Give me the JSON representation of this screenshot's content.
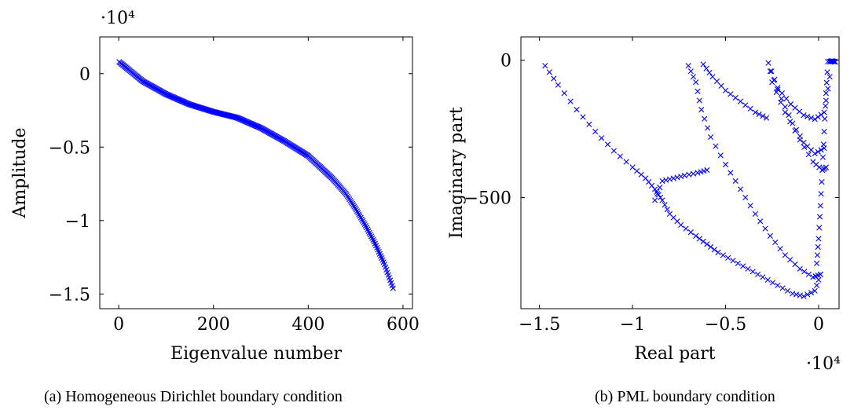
{
  "captions": {
    "left": "(a) Homogeneous Dirichlet boundary condition",
    "right": "(b) PML boundary condition"
  },
  "chart_data": [
    {
      "type": "scatter",
      "title": "",
      "xlabel": "Eigenvalue number",
      "ylabel": "Amplitude",
      "y_scale_label": "·10⁴",
      "xlim": [
        -40,
        620
      ],
      "ylim": [
        -1.6,
        0.25
      ],
      "x_ticks": [
        0,
        200,
        400,
        600
      ],
      "x_tick_labels": [
        "0",
        "200",
        "400",
        "600"
      ],
      "y_ticks": [
        0,
        -0.5,
        -1,
        -1.5
      ],
      "y_tick_labels": [
        "0",
        "−0.5",
        "−1",
        "−1.5"
      ],
      "grid": false,
      "legend": "none",
      "marker": "x",
      "color": "#0000ff",
      "n_points": 580,
      "curve_control_points": {
        "x": [
          1,
          50,
          100,
          150,
          200,
          250,
          300,
          350,
          400,
          450,
          480,
          500,
          520,
          540,
          560,
          580
        ],
        "y": [
          0.08,
          -0.05,
          -0.14,
          -0.21,
          -0.26,
          -0.3,
          -0.37,
          -0.46,
          -0.56,
          -0.71,
          -0.82,
          -0.92,
          -1.03,
          -1.15,
          -1.29,
          -1.47
        ]
      }
    },
    {
      "type": "scatter",
      "title": "",
      "xlabel": "Real part",
      "ylabel": "Imaginary part",
      "x_scale_label": "·10⁴",
      "xlim": [
        -1.6,
        0.11
      ],
      "ylim": [
        -905,
        85
      ],
      "x_ticks": [
        -1.5,
        -1,
        -0.5,
        0
      ],
      "x_tick_labels": [
        "−1.5",
        "−1",
        "−0.5",
        "0"
      ],
      "y_ticks": [
        0,
        -500
      ],
      "y_tick_labels": [
        "0",
        "−500"
      ],
      "grid": false,
      "legend": "none",
      "marker": "x",
      "color": "#0000ff",
      "branches": [
        {
          "x": [
            -1.47,
            -1.4,
            -1.3,
            -1.2,
            -1.1,
            -1.0,
            -0.93,
            -0.88,
            -0.85
          ],
          "y": [
            -20,
            -90,
            -180,
            -260,
            -330,
            -390,
            -430,
            -470,
            -500
          ]
        },
        {
          "x": [
            -0.88,
            -0.84,
            -0.78,
            -0.72,
            -0.65,
            -0.6
          ],
          "y": [
            -510,
            -440,
            -430,
            -420,
            -410,
            -400
          ]
        },
        {
          "x": [
            -0.84,
            -0.8,
            -0.74,
            -0.66,
            -0.6,
            -0.54,
            -0.46,
            -0.38,
            -0.3,
            -0.22,
            -0.14,
            -0.08,
            -0.02,
            0.01
          ],
          "y": [
            -510,
            -560,
            -600,
            -640,
            -670,
            -700,
            -730,
            -760,
            -790,
            -820,
            -850,
            -860,
            -840,
            -780
          ]
        },
        {
          "x": [
            -0.7,
            -0.66,
            -0.63,
            -0.58,
            -0.5,
            -0.42,
            -0.34,
            -0.26,
            -0.18,
            -0.1,
            -0.03,
            0.01
          ],
          "y": [
            -20,
            -80,
            -180,
            -280,
            -380,
            -470,
            -560,
            -640,
            -710,
            -760,
            -790,
            -780
          ]
        },
        {
          "x": [
            -0.62,
            -0.57,
            -0.5,
            -0.42,
            -0.34,
            -0.28
          ],
          "y": [
            -15,
            -60,
            -110,
            -150,
            -190,
            -210
          ]
        },
        {
          "x": [
            -0.27,
            -0.22,
            -0.15,
            -0.08,
            -0.02,
            0.03,
            0.06
          ],
          "y": [
            -10,
            -100,
            -160,
            -200,
            -215,
            -190,
            -60
          ]
        },
        {
          "x": [
            -0.26,
            -0.2,
            -0.14,
            -0.08,
            -0.02,
            0.03
          ],
          "y": [
            -40,
            -140,
            -230,
            -300,
            -340,
            -320
          ]
        },
        {
          "x": [
            -0.25,
            -0.18,
            -0.1,
            -0.03,
            0.02,
            0.04
          ],
          "y": [
            -80,
            -190,
            -290,
            -370,
            -400,
            -390
          ]
        },
        {
          "x": [
            0.05,
            0.04,
            0.03,
            0.02,
            0.01,
            0.0,
            -0.01
          ],
          "y": [
            -5,
            -120,
            -260,
            -400,
            -530,
            -650,
            -740
          ]
        },
        {
          "x": [
            0.06,
            0.07,
            0.08,
            0.09
          ],
          "y": [
            -5,
            -3,
            -4,
            -6
          ]
        }
      ]
    }
  ]
}
